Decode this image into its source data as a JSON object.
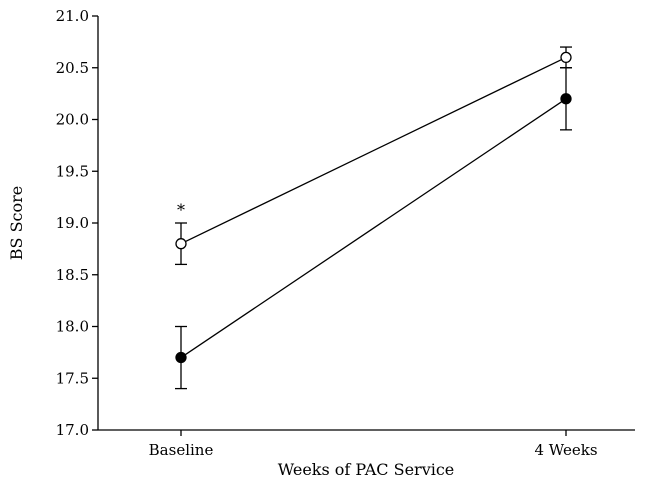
{
  "chart_data": {
    "type": "line",
    "title": "",
    "xlabel": "Weeks of PAC Service",
    "ylabel": "BS Score",
    "categories": [
      "Baseline",
      "4 Weeks"
    ],
    "ylim": [
      17.0,
      21.0
    ],
    "yticks": [
      "17.0",
      "17.5",
      "18.0",
      "18.5",
      "19.0",
      "19.5",
      "20.0",
      "20.5",
      "21.0"
    ],
    "grid": false,
    "legend": "none",
    "series": [
      {
        "marker": "open-circle",
        "color": "#000000",
        "values": [
          18.8,
          20.6
        ],
        "error": [
          0.2,
          0.1
        ]
      },
      {
        "marker": "filled-circle",
        "color": "#000000",
        "values": [
          17.7,
          20.2
        ],
        "error": [
          0.3,
          0.3
        ]
      }
    ],
    "annotations": [
      {
        "text": "*",
        "category": "Baseline",
        "y": 19.1
      }
    ]
  }
}
